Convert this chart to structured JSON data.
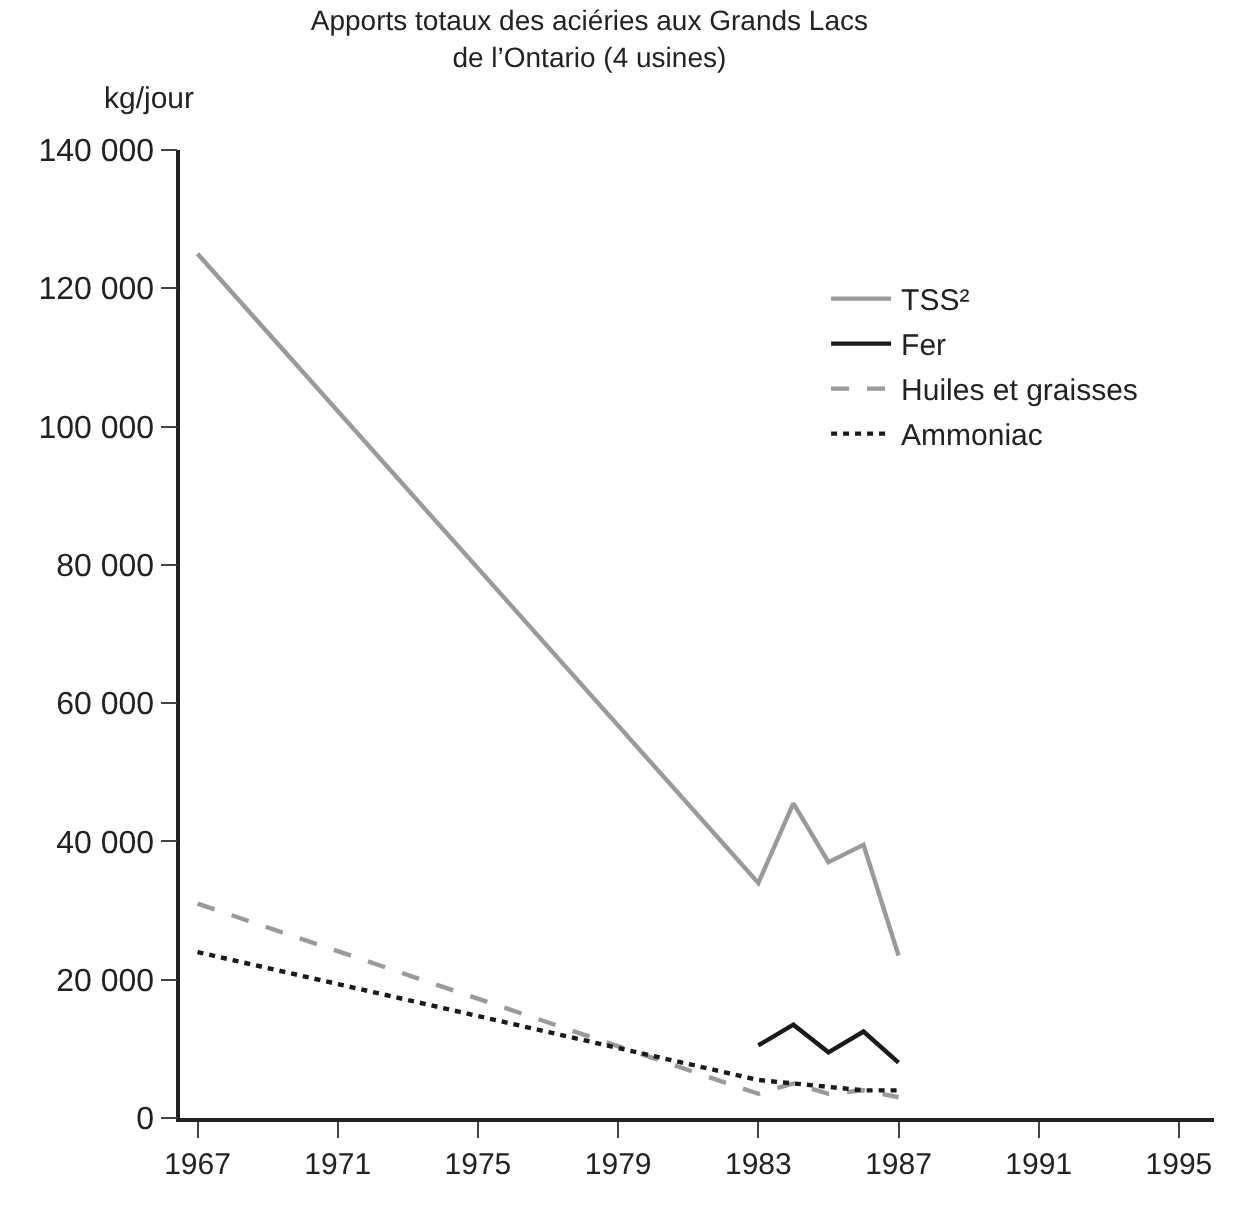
{
  "chart_data": {
    "type": "line",
    "title": "Apports totaux des aciéries aux Grands Lacs\nde l’Ontario (4 usines)",
    "ylabel": "kg/jour",
    "x": [
      1967,
      1983,
      1984,
      1985,
      1986,
      1987
    ],
    "series": [
      {
        "name": "TSS²",
        "color": "#9a9a9a",
        "line_style": "solid",
        "values": [
          125000,
          34000,
          45500,
          37000,
          39500,
          23500
        ]
      },
      {
        "name": "Fer",
        "color": "#1a1a1a",
        "line_style": "solid",
        "values": [
          null,
          10500,
          13500,
          9500,
          12500,
          8000
        ]
      },
      {
        "name": "Huiles et graisses",
        "color": "#9a9a9a",
        "line_style": "dashed",
        "values": [
          31000,
          3500,
          5000,
          3500,
          4000,
          3000
        ]
      },
      {
        "name": "Ammoniac",
        "color": "#1a1a1a",
        "line_style": "dotted",
        "values": [
          24000,
          5500,
          5000,
          4500,
          4000,
          4000
        ]
      }
    ],
    "xlim": [
      1966.5,
      1996
    ],
    "xticks": [
      1967,
      1971,
      1975,
      1979,
      1983,
      1987,
      1991,
      1995
    ],
    "ylim": [
      0,
      140000
    ],
    "yticks": [
      {
        "value": 0,
        "label": "0"
      },
      {
        "value": 20000,
        "label": "20 000"
      },
      {
        "value": 40000,
        "label": "40 000"
      },
      {
        "value": 60000,
        "label": "60 000"
      },
      {
        "value": 80000,
        "label": "80 000"
      },
      {
        "value": 100000,
        "label": "100 000"
      },
      {
        "value": 120000,
        "label": "120 000"
      },
      {
        "value": 140000,
        "label": "140 000"
      }
    ],
    "legend": "top right",
    "marker": "none"
  }
}
